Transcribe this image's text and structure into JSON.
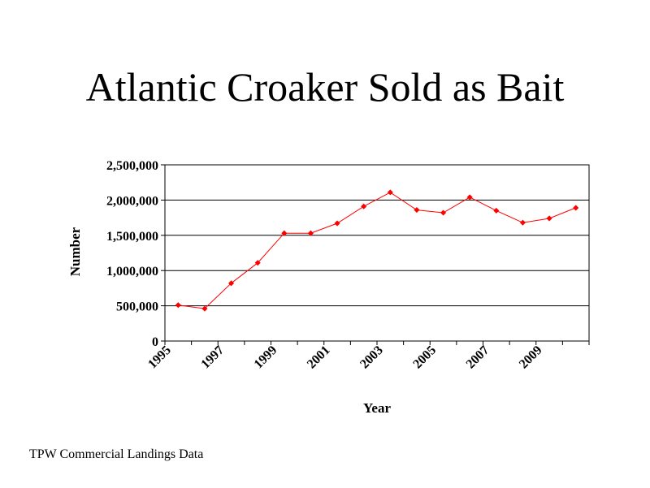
{
  "slide": {
    "title": "Atlantic Croaker Sold as Bait",
    "footer": "TPW Commercial Landings Data"
  },
  "chart_data": {
    "type": "line",
    "title": "Atlantic Croaker Sold as Bait",
    "xlabel": "Year",
    "ylabel": "Number",
    "x": [
      1995,
      1996,
      1997,
      1998,
      1999,
      2000,
      2001,
      2002,
      2003,
      2004,
      2005,
      2006,
      2007,
      2008,
      2009,
      2010
    ],
    "x_tick_labels": [
      "1995",
      "1997",
      "1999",
      "2001",
      "2003",
      "2005",
      "2007",
      "2009"
    ],
    "y_tick_labels": [
      "0",
      "500,000",
      "1,000,000",
      "1,500,000",
      "2,000,000",
      "2,500,000"
    ],
    "ylim": [
      0,
      2500000
    ],
    "grid": true,
    "series": [
      {
        "values": [
          510000,
          460000,
          820000,
          1110000,
          1530000,
          1530000,
          1670000,
          1910000,
          2110000,
          1860000,
          1820000,
          2040000,
          1850000,
          1680000,
          1740000,
          1890000
        ],
        "color": "#ff0000"
      }
    ]
  }
}
